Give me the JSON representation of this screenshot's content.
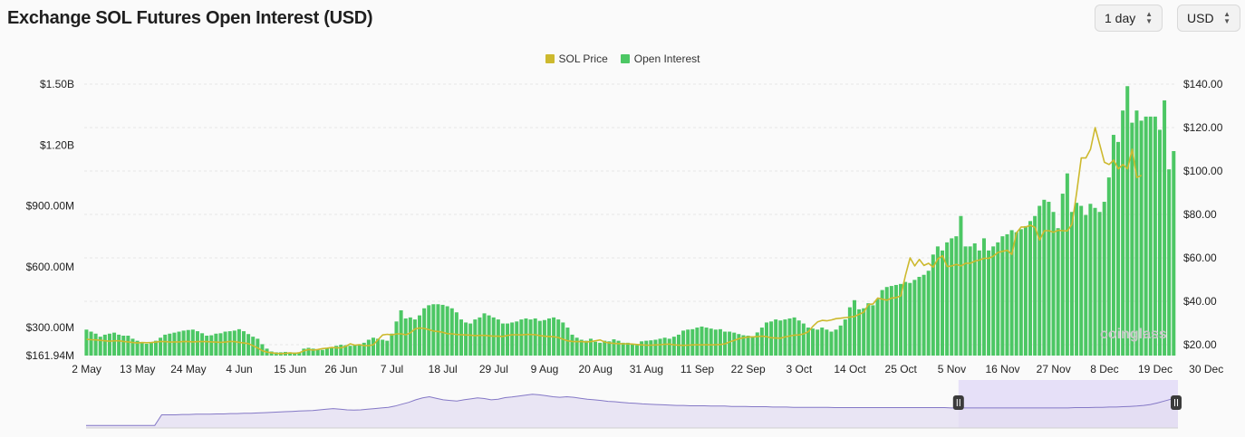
{
  "header": {
    "title": "Exchange SOL Futures Open Interest (USD)",
    "interval_select": "1 day",
    "currency_select": "USD"
  },
  "watermark": "coinglass",
  "colors": {
    "open_interest": "#4cc764",
    "sol_price": "#cdb92e",
    "navigator_fill": "#e3ddf2",
    "navigator_line": "#8478c6",
    "navigator_selection": "#e6e0f8",
    "handle": "#3b3b3b"
  },
  "chart_data": {
    "type": "bar",
    "title": "Exchange SOL Futures Open Interest (USD)",
    "legend_position": "top-center",
    "grid": true,
    "x_tick_labels": [
      "2 May",
      "13 May",
      "24 May",
      "4 Jun",
      "15 Jun",
      "26 Jun",
      "7 Jul",
      "18 Jul",
      "29 Jul",
      "9 Aug",
      "20 Aug",
      "31 Aug",
      "11 Sep",
      "22 Sep",
      "3 Oct",
      "14 Oct",
      "25 Oct",
      "5 Nov",
      "16 Nov",
      "27 Nov",
      "8 Dec",
      "19 Dec",
      "30 Dec"
    ],
    "y_left_tick_labels": [
      "$161.94M",
      "$300.00M",
      "$600.00M",
      "$900.00M",
      "$1.20B",
      "$1.50B"
    ],
    "y_left_tick_values": [
      161.94,
      300,
      600,
      900,
      1200,
      1500
    ],
    "y_left_range": [
      161.94,
      1500
    ],
    "y_left_unit": "USD millions",
    "y_right_tick_labels": [
      "$20.00",
      "$40.00",
      "$60.00",
      "$80.00",
      "$100.00",
      "$120.00",
      "$140.00"
    ],
    "y_right_tick_values": [
      20,
      40,
      60,
      80,
      100,
      120,
      140
    ],
    "y_right_range": [
      15,
      140
    ],
    "start_date": "2023-05-02",
    "series": [
      {
        "name": "Open Interest",
        "axis": "left",
        "type": "bar",
        "values": [
          290,
          280,
          270,
          255,
          265,
          270,
          275,
          265,
          260,
          260,
          245,
          235,
          225,
          220,
          225,
          235,
          250,
          265,
          270,
          275,
          280,
          285,
          288,
          290,
          282,
          272,
          260,
          262,
          270,
          272,
          280,
          282,
          285,
          292,
          282,
          268,
          255,
          245,
          218,
          196,
          182,
          178,
          178,
          180,
          178,
          177,
          178,
          196,
          200,
          196,
          192,
          190,
          197,
          202,
          210,
          215,
          213,
          210,
          215,
          218,
          225,
          240,
          250,
          245,
          240,
          235,
          270,
          330,
          385,
          345,
          350,
          340,
          360,
          395,
          410,
          415,
          415,
          412,
          405,
          395,
          375,
          340,
          325,
          320,
          340,
          350,
          370,
          360,
          350,
          340,
          320,
          320,
          325,
          330,
          340,
          345,
          340,
          345,
          333,
          337,
          345,
          350,
          340,
          325,
          300,
          265,
          250,
          240,
          235,
          245,
          230,
          225,
          235,
          232,
          242,
          235,
          225,
          225,
          220,
          213,
          232,
          235,
          237,
          240,
          245,
          250,
          245,
          255,
          265,
          285,
          290,
          292,
          300,
          305,
          300,
          295,
          290,
          292,
          280,
          280,
          275,
          268,
          262,
          260,
          257,
          276,
          300,
          325,
          330,
          340,
          335,
          340,
          345,
          350,
          335,
          320,
          300,
          295,
          290,
          300,
          290,
          280,
          290,
          310,
          340,
          400,
          435,
          390,
          395,
          420,
          410,
          440,
          485,
          500,
          505,
          510,
          515,
          525,
          520,
          535,
          550,
          560,
          580,
          660,
          700,
          680,
          720,
          740,
          750,
          850,
          700,
          700,
          715,
          680,
          740,
          680,
          700,
          720,
          750,
          760,
          780,
          770,
          785,
          800,
          825,
          850,
          900,
          930,
          920,
          870,
          790,
          960,
          1060,
          870,
          915,
          900,
          855,
          910,
          890,
          870,
          920,
          1040,
          1250,
          1215,
          1370,
          1490,
          1310,
          1370,
          1320,
          1340,
          1340,
          1340,
          1275,
          1420,
          1080,
          1170
        ]
      },
      {
        "name": "SOL Price",
        "axis": "right",
        "type": "line",
        "values": [
          22.5,
          22.3,
          22.2,
          22,
          21.8,
          21.6,
          21.8,
          21.8,
          21.5,
          21.3,
          21,
          20.8,
          21,
          20.9,
          21,
          21.2,
          21.5,
          21.4,
          21.2,
          21.3,
          21.3,
          21.5,
          21.4,
          21.3,
          21.4,
          21.4,
          21.4,
          21.3,
          21.2,
          21.1,
          21.2,
          21.5,
          21.4,
          21.1,
          20.8,
          20.5,
          19.5,
          18.5,
          17.2,
          16.6,
          16.3,
          16,
          15.9,
          16,
          16.2,
          16,
          16.3,
          17.2,
          17.8,
          17.5,
          17.8,
          18.2,
          18.4,
          18.7,
          18.6,
          18.6,
          19.2,
          20.4,
          19.8,
          20,
          19.6,
          19.6,
          20,
          22.3,
          24.5,
          24.8,
          24.5,
          25,
          25,
          24.6,
          25.5,
          27.3,
          27.7,
          27.5,
          26.9,
          26.3,
          26.1,
          25.7,
          25.1,
          25,
          24.7,
          24.6,
          24.5,
          24.4,
          24.2,
          24.3,
          24.3,
          24.1,
          23.9,
          23.9,
          23.8,
          24.3,
          24.6,
          24.6,
          24.5,
          24.7,
          24.7,
          24.6,
          24.2,
          23.9,
          23.8,
          23.7,
          23.3,
          22.5,
          21.8,
          21.5,
          21.4,
          21.4,
          21.3,
          21.4,
          21.8,
          22.2,
          21.2,
          20.8,
          20.6,
          20.5,
          20.4,
          20.4,
          20.3,
          20.1,
          19.9,
          19.8,
          19.8,
          19.9,
          20,
          20.2,
          20.3,
          19.9,
          19.8,
          19.7,
          19.8,
          19.9,
          20,
          19.9,
          20,
          19.9,
          20,
          20.1,
          20.4,
          21.3,
          22,
          22.8,
          23.2,
          23.6,
          23.6,
          23.8,
          23.9,
          23.7,
          23.2,
          23.1,
          23,
          23.6,
          24,
          24.4,
          24.5,
          25,
          26,
          28.5,
          30.5,
          31.2,
          31,
          31.4,
          32,
          32.2,
          32.5,
          32.7,
          33,
          34,
          35,
          38.5,
          38.8,
          41.5,
          41,
          40.5,
          41.5,
          41.7,
          42.5,
          52,
          60,
          56.3,
          59.3,
          56.5,
          57.5,
          55.7,
          59.5,
          61,
          56,
          56.3,
          57,
          56.3,
          57.5,
          57.5,
          58.5,
          59,
          59.8,
          59.8,
          60.8,
          62.5,
          63,
          63.5,
          61.6,
          71.5,
          74.2,
          74.2,
          75,
          74,
          68.2,
          72.5,
          72.5,
          71.8,
          72.7,
          72.5,
          72.4,
          75.5,
          90,
          106,
          106,
          110,
          120,
          112,
          104,
          103,
          105,
          101,
          103,
          101,
          110,
          97,
          98
        ]
      }
    ]
  },
  "navigator": {
    "values": [
      0.08,
      0.08,
      0.08,
      0.08,
      0.08,
      0.08,
      0.08,
      0.08,
      0.08,
      0.08,
      0.08,
      0.42,
      0.42,
      0.42,
      0.43,
      0.43,
      0.44,
      0.44,
      0.44,
      0.45,
      0.45,
      0.46,
      0.46,
      0.47,
      0.47,
      0.48,
      0.49,
      0.5,
      0.51,
      0.52,
      0.53,
      0.54,
      0.55,
      0.56,
      0.58,
      0.6,
      0.62,
      0.6,
      0.58,
      0.57,
      0.58,
      0.6,
      0.62,
      0.64,
      0.66,
      0.7,
      0.76,
      0.82,
      0.9,
      0.96,
      1.0,
      0.95,
      0.9,
      0.88,
      0.86,
      0.9,
      0.93,
      0.96,
      0.94,
      0.9,
      0.92,
      0.97,
      0.99,
      1.02,
      1.05,
      1.08,
      1.06,
      1.03,
      1.0,
      0.98,
      1.0,
      0.98,
      0.95,
      0.92,
      0.9,
      0.88,
      0.85,
      0.84,
      0.82,
      0.8,
      0.79,
      0.77,
      0.76,
      0.75,
      0.74,
      0.73,
      0.72,
      0.72,
      0.71,
      0.71,
      0.71,
      0.7,
      0.7,
      0.7,
      0.69,
      0.69,
      0.69,
      0.68,
      0.68,
      0.68,
      0.67,
      0.67,
      0.67,
      0.66,
      0.66,
      0.66,
      0.66,
      0.66,
      0.66,
      0.65,
      0.65,
      0.65,
      0.65,
      0.65,
      0.65,
      0.65,
      0.65,
      0.65,
      0.65,
      0.65,
      0.65,
      0.65,
      0.65,
      0.65,
      0.65,
      0.65,
      0.64,
      0.64,
      0.64,
      0.64,
      0.64,
      0.64,
      0.64,
      0.64,
      0.64,
      0.64,
      0.64,
      0.64,
      0.64,
      0.64,
      0.64,
      0.64,
      0.64,
      0.64,
      0.65,
      0.65,
      0.65,
      0.66,
      0.66,
      0.67,
      0.67,
      0.68,
      0.69,
      0.7,
      0.72,
      0.75,
      0.8,
      0.86,
      0.92,
      0.96
    ],
    "selection_start_fraction": 0.799,
    "selection_end_fraction": 1.0
  }
}
